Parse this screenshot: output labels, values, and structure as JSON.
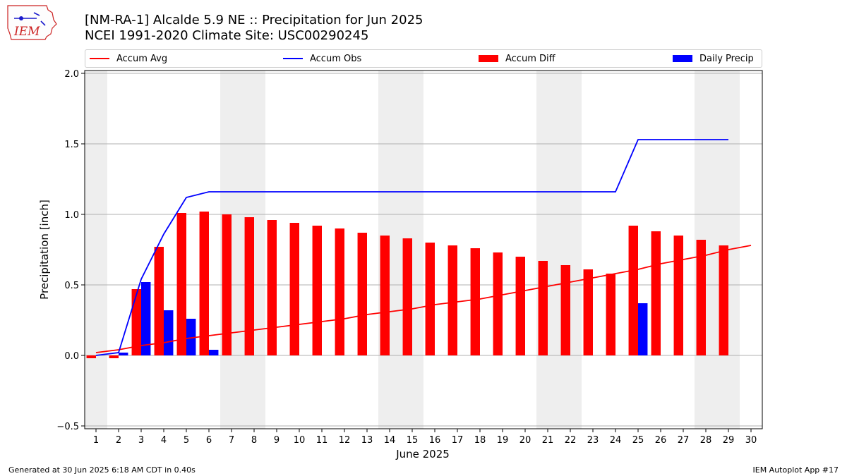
{
  "header": {
    "title_line1": "[NM-RA-1] Alcalde 5.9 NE :: Precipitation for Jun 2025",
    "title_line2": "NCEI 1991-2020 Climate Site: USC00290245",
    "logo_text": "IEM"
  },
  "footer": {
    "generated": "Generated at 30 Jun 2025 6:18 AM CDT in 0.40s",
    "app": "IEM Autoplot App #17"
  },
  "legend": [
    {
      "label": "Accum Avg",
      "kind": "line",
      "color": "#ff0000"
    },
    {
      "label": "Accum Obs",
      "kind": "line",
      "color": "#0000ff"
    },
    {
      "label": "Accum Diff",
      "kind": "bar",
      "color": "#ff0000"
    },
    {
      "label": "Daily Precip",
      "kind": "bar",
      "color": "#0000ff"
    }
  ],
  "chart_data": {
    "type": "bar",
    "xlabel": "June 2025",
    "ylabel": "Precipitation [inch]",
    "ylim": [
      -0.52,
      2.02
    ],
    "yticks": [
      -0.5,
      0.0,
      0.5,
      1.0,
      1.5,
      2.0
    ],
    "ytick_labels": [
      "−0.5",
      "0.0",
      "0.5",
      "1.0",
      "1.5",
      "2.0"
    ],
    "grid": true,
    "legend_position": "top",
    "days": [
      1,
      2,
      3,
      4,
      5,
      6,
      7,
      8,
      9,
      10,
      11,
      12,
      13,
      14,
      15,
      16,
      17,
      18,
      19,
      20,
      21,
      22,
      23,
      24,
      25,
      26,
      27,
      28,
      29,
      30
    ],
    "weekend_days": [
      1,
      7,
      8,
      14,
      15,
      21,
      22,
      28,
      29
    ],
    "series": [
      {
        "name": "Accum Avg",
        "kind": "line",
        "color": "#ff0000",
        "days": [
          1,
          2,
          3,
          4,
          5,
          6,
          7,
          8,
          9,
          10,
          11,
          12,
          13,
          14,
          15,
          16,
          17,
          18,
          19,
          20,
          21,
          22,
          23,
          24,
          25,
          26,
          27,
          28,
          29,
          30
        ],
        "values": [
          0.02,
          0.04,
          0.07,
          0.09,
          0.12,
          0.14,
          0.16,
          0.18,
          0.2,
          0.22,
          0.24,
          0.26,
          0.29,
          0.31,
          0.33,
          0.36,
          0.38,
          0.4,
          0.43,
          0.46,
          0.49,
          0.52,
          0.55,
          0.58,
          0.61,
          0.65,
          0.68,
          0.71,
          0.75,
          0.78
        ]
      },
      {
        "name": "Accum Obs",
        "kind": "line",
        "color": "#0000ff",
        "days": [
          1,
          2,
          3,
          4,
          5,
          6,
          7,
          8,
          9,
          10,
          11,
          12,
          13,
          14,
          15,
          16,
          17,
          18,
          19,
          20,
          21,
          22,
          23,
          24,
          25,
          26,
          27,
          28,
          29
        ],
        "values": [
          0.0,
          0.02,
          0.54,
          0.86,
          1.12,
          1.16,
          1.16,
          1.16,
          1.16,
          1.16,
          1.16,
          1.16,
          1.16,
          1.16,
          1.16,
          1.16,
          1.16,
          1.16,
          1.16,
          1.16,
          1.16,
          1.16,
          1.16,
          1.16,
          1.53,
          1.53,
          1.53,
          1.53,
          1.53
        ]
      },
      {
        "name": "Accum Diff",
        "kind": "bar",
        "color": "#ff0000",
        "days": [
          1,
          2,
          3,
          4,
          5,
          6,
          7,
          8,
          9,
          10,
          11,
          12,
          13,
          14,
          15,
          16,
          17,
          18,
          19,
          20,
          21,
          22,
          23,
          24,
          25,
          26,
          27,
          28,
          29
        ],
        "values": [
          -0.02,
          -0.02,
          0.47,
          0.77,
          1.01,
          1.02,
          1.0,
          0.98,
          0.96,
          0.94,
          0.92,
          0.9,
          0.87,
          0.85,
          0.83,
          0.8,
          0.78,
          0.76,
          0.73,
          0.7,
          0.67,
          0.64,
          0.61,
          0.58,
          0.92,
          0.88,
          0.85,
          0.82,
          0.78
        ]
      },
      {
        "name": "Daily Precip",
        "kind": "bar",
        "color": "#0000ff",
        "days": [
          2,
          3,
          4,
          5,
          6,
          25
        ],
        "values": [
          0.02,
          0.52,
          0.32,
          0.26,
          0.04,
          0.37
        ]
      }
    ]
  }
}
